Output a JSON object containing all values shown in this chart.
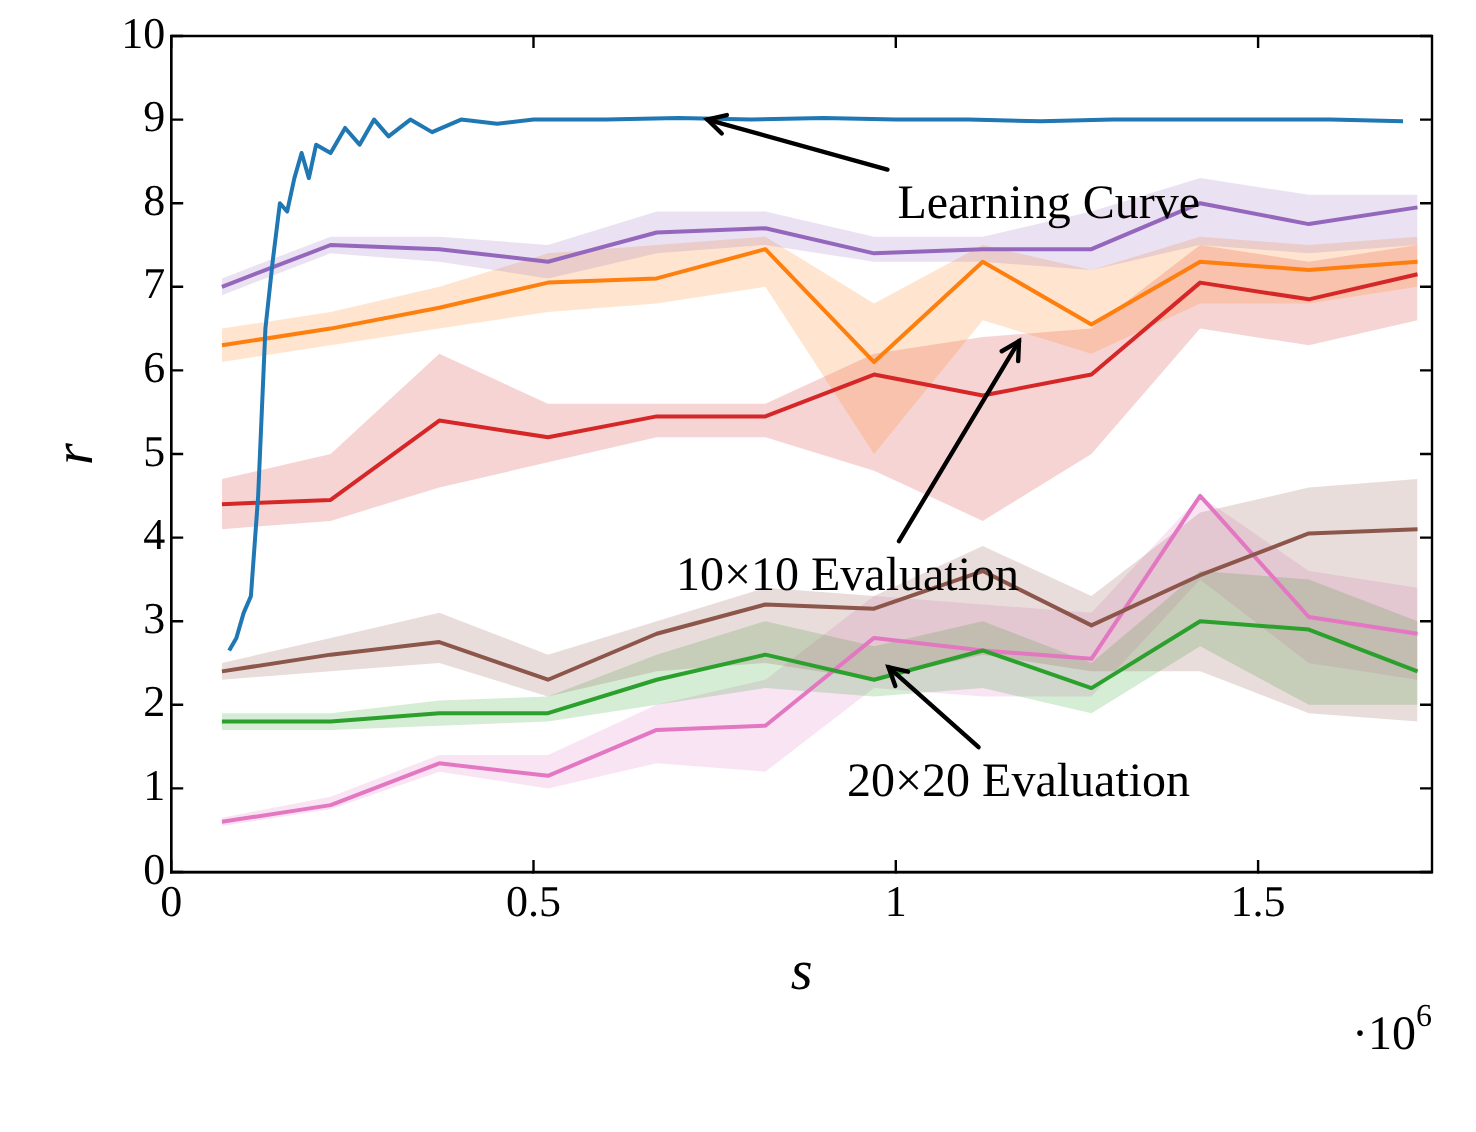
{
  "chart_data": {
    "type": "line",
    "xlabel": "s",
    "ylabel": "r",
    "xlim": [
      0,
      1.74
    ],
    "xticks": [
      0,
      0.5,
      1,
      1.5
    ],
    "ylim": [
      0,
      10
    ],
    "yticks": [
      0,
      1,
      2,
      3,
      4,
      5,
      6,
      7,
      8,
      9,
      10
    ],
    "grid": false,
    "legend": false,
    "marker": "none",
    "line_style": "solid",
    "annotations": [
      {
        "text": "Learning Curve",
        "x": 0.74,
        "y": 9.0
      },
      {
        "text": "10×10 Evaluation",
        "x": 1.17,
        "y": 6.35
      },
      {
        "text": "20×20 Evaluation",
        "x": 0.99,
        "y": 2.45
      },
      "·10$^{6}$"
    ],
    "series": [
      {
        "color": "#1f77b4",
        "x": [
          0.08,
          0.09,
          0.1,
          0.11,
          0.12,
          0.13,
          0.14,
          0.15,
          0.16,
          0.17,
          0.18,
          0.19,
          0.2,
          0.22,
          0.24,
          0.26,
          0.28,
          0.3,
          0.33,
          0.36,
          0.4,
          0.45,
          0.5,
          0.6,
          0.7,
          0.8,
          0.9,
          1.0,
          1.1,
          1.2,
          1.3,
          1.4,
          1.5,
          1.6,
          1.7
        ],
        "values": [
          2.65,
          2.8,
          3.1,
          3.3,
          4.5,
          6.5,
          7.3,
          8.0,
          7.9,
          8.3,
          8.6,
          8.3,
          8.7,
          8.6,
          8.9,
          8.7,
          9.0,
          8.8,
          9.0,
          8.85,
          9.0,
          8.95,
          9.0,
          9.0,
          9.02,
          9.0,
          9.02,
          9.0,
          9.0,
          8.98,
          9.0,
          9.0,
          9.0,
          9.0,
          8.98
        ]
      },
      {
        "color": "#9467bd",
        "values": [
          7.0,
          7.5,
          7.45,
          7.3,
          7.65,
          7.7,
          7.4,
          7.45,
          7.45,
          8.0,
          7.75,
          7.95
        ],
        "lower": [
          6.9,
          7.4,
          7.3,
          7.1,
          7.4,
          7.5,
          7.3,
          7.3,
          7.2,
          7.5,
          7.4,
          7.5
        ],
        "upper": [
          7.1,
          7.6,
          7.6,
          7.5,
          7.9,
          7.9,
          7.6,
          7.6,
          7.9,
          8.3,
          8.1,
          8.1
        ]
      },
      {
        "color": "#ff7f0e",
        "values": [
          6.3,
          6.5,
          6.75,
          7.05,
          7.1,
          7.45,
          6.1,
          7.3,
          6.55,
          7.3,
          7.2,
          7.3
        ],
        "lower": [
          6.1,
          6.3,
          6.5,
          6.7,
          6.8,
          7.0,
          5.0,
          6.6,
          6.2,
          6.8,
          6.8,
          7.0
        ],
        "upper": [
          6.5,
          6.7,
          7.0,
          7.4,
          7.5,
          7.6,
          6.8,
          7.5,
          7.2,
          7.6,
          7.5,
          7.6
        ]
      },
      {
        "color": "#d62728",
        "values": [
          4.4,
          4.45,
          5.4,
          5.2,
          5.45,
          5.45,
          5.95,
          5.7,
          5.95,
          7.05,
          6.85,
          7.15
        ],
        "lower": [
          4.1,
          4.2,
          4.6,
          4.9,
          5.2,
          5.2,
          4.8,
          4.2,
          5.0,
          6.5,
          6.3,
          6.6
        ],
        "upper": [
          4.7,
          5.0,
          6.2,
          5.6,
          5.6,
          5.6,
          6.2,
          6.4,
          6.5,
          7.5,
          7.3,
          7.5
        ]
      },
      {
        "color": "#8c564b",
        "values": [
          2.4,
          2.6,
          2.75,
          2.3,
          2.85,
          3.2,
          3.15,
          3.6,
          2.95,
          3.55,
          4.05,
          4.1
        ],
        "lower": [
          2.3,
          2.4,
          2.5,
          2.1,
          2.4,
          2.5,
          2.3,
          2.6,
          2.4,
          2.4,
          1.9,
          1.8
        ],
        "upper": [
          2.5,
          2.8,
          3.1,
          2.6,
          3.0,
          3.4,
          3.3,
          3.9,
          3.3,
          4.3,
          4.6,
          4.7
        ]
      },
      {
        "color": "#2ca02c",
        "values": [
          1.8,
          1.8,
          1.9,
          1.9,
          2.3,
          2.6,
          2.3,
          2.65,
          2.2,
          3.0,
          2.9,
          2.4
        ],
        "lower": [
          1.7,
          1.7,
          1.75,
          1.8,
          2.0,
          2.2,
          2.1,
          2.2,
          1.9,
          2.7,
          2.0,
          2.0
        ],
        "upper": [
          1.9,
          1.9,
          2.05,
          2.1,
          2.6,
          3.0,
          2.7,
          3.0,
          2.5,
          3.6,
          3.5,
          3.0
        ]
      },
      {
        "color": "#e377c2",
        "values": [
          0.6,
          0.8,
          1.3,
          1.15,
          1.7,
          1.75,
          2.8,
          2.65,
          2.55,
          4.5,
          3.05,
          2.85
        ],
        "lower": [
          0.55,
          0.75,
          1.2,
          1.0,
          1.3,
          1.2,
          2.2,
          2.1,
          2.1,
          3.5,
          2.5,
          2.3
        ],
        "upper": [
          0.65,
          0.9,
          1.4,
          1.4,
          2.0,
          2.3,
          3.3,
          3.2,
          3.1,
          4.5,
          3.6,
          3.4
        ]
      }
    ],
    "x": [
      0.07,
      0.22,
      0.37,
      0.52,
      0.67,
      0.82,
      0.97,
      1.12,
      1.27,
      1.42,
      1.57,
      1.72
    ]
  }
}
